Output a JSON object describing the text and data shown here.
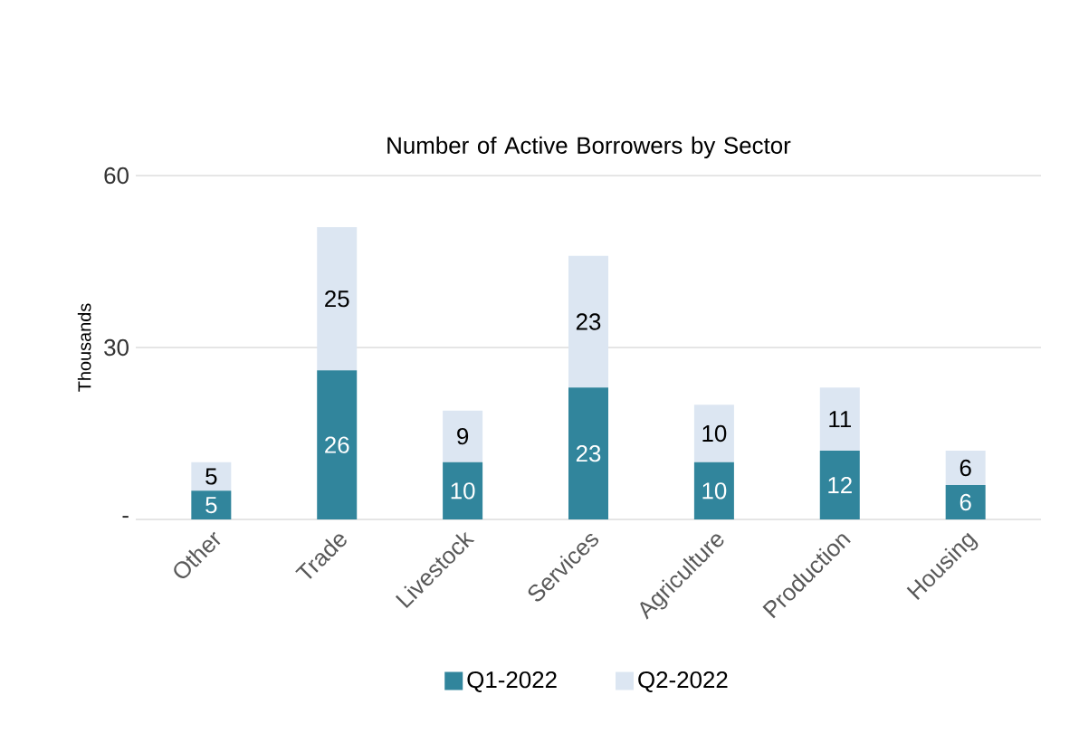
{
  "chart_data": {
    "type": "bar",
    "stacked": true,
    "title": "Number of Active Borrowers by Sector",
    "ylabel": "Thousands",
    "categories": [
      "Other",
      "Trade",
      "Livestock",
      "Services",
      "Agriculture",
      "Production",
      "Housing"
    ],
    "series": [
      {
        "name": "Q1-2022",
        "color": "#31859c",
        "values": [
          5,
          26,
          10,
          23,
          10,
          12,
          6
        ]
      },
      {
        "name": "Q2-2022",
        "color": "#dce6f2",
        "values": [
          5,
          25,
          9,
          23,
          10,
          11,
          6
        ]
      }
    ],
    "ylim": [
      0,
      60
    ],
    "yticks": [
      {
        "value": 0,
        "label": "-"
      },
      30,
      60
    ],
    "grid": "y",
    "legend": "bottom",
    "data_labels": true
  }
}
